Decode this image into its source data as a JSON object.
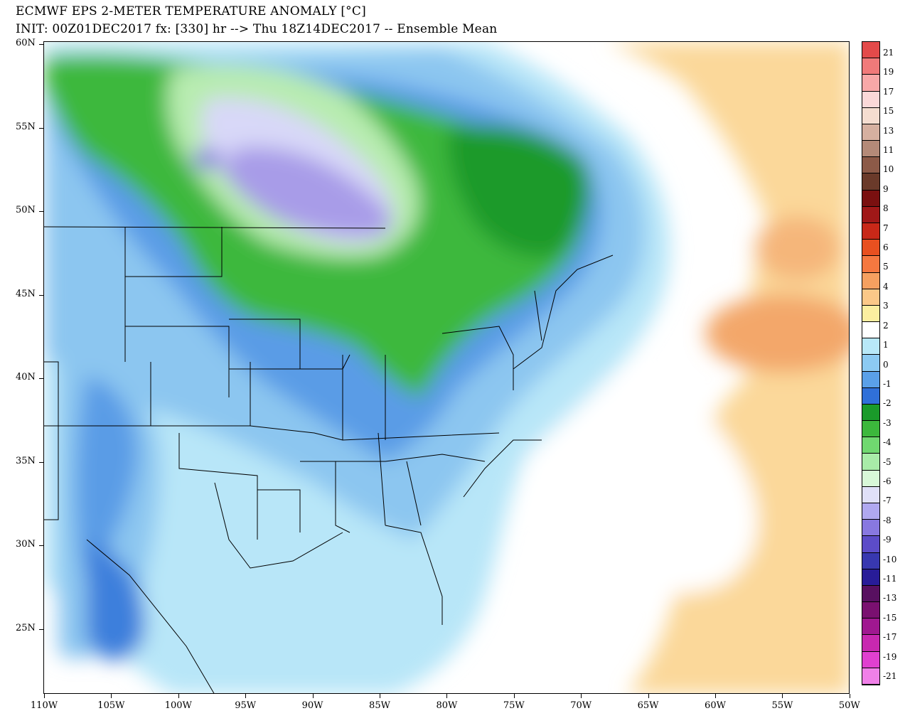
{
  "title": {
    "line1": "ECMWF EPS 2-METER TEMPERATURE ANOMALY [°C]",
    "line2": "INIT: 00Z01DEC2017 fx: [330] hr --> Thu 18Z14DEC2017 -- Ensemble Mean"
  },
  "axes": {
    "lat_labels": [
      "60N",
      "55N",
      "50N",
      "45N",
      "40N",
      "35N",
      "30N",
      "25N"
    ],
    "lon_labels": [
      "110W",
      "105W",
      "100W",
      "95W",
      "90W",
      "85W",
      "80W",
      "75W",
      "70W",
      "65W",
      "60W",
      "55W",
      "50W"
    ]
  },
  "colorbar": {
    "labels": [
      "21",
      "19",
      "17",
      "15",
      "13",
      "11",
      "10",
      "9",
      "8",
      "7",
      "6",
      "5",
      "4",
      "3",
      "2",
      "1",
      "0",
      "-1",
      "-2",
      "-3",
      "-4",
      "-5",
      "-6",
      "-7",
      "-8",
      "-9",
      "-10",
      "-11",
      "-13",
      "-15",
      "-17",
      "-19",
      "-21"
    ],
    "colors": [
      "#e34a4a",
      "#f07a7a",
      "#f8a8a8",
      "#fbd8d8",
      "#f5ddd0",
      "#d6b0a0",
      "#b48a78",
      "#8c5a48",
      "#6a3a2a",
      "#7a1010",
      "#a01818",
      "#c82818",
      "#e85020",
      "#f57840",
      "#f5a060",
      "#fbc888",
      "#fbeea0",
      "#ffffff",
      "#b8e8f8",
      "#8ccaf2",
      "#5aa0e8",
      "#3070d8",
      "#1a9a2a",
      "#3cb83c",
      "#70d870",
      "#a8eca8",
      "#d8f8d8",
      "#e0e0f8",
      "#b0a8f0",
      "#8878e0",
      "#5c4cc8",
      "#3838b0",
      "#281c98",
      "#581060",
      "#7a1070",
      "#a01890",
      "#c828b0",
      "#e040d0",
      "#f080e8"
    ]
  }
}
